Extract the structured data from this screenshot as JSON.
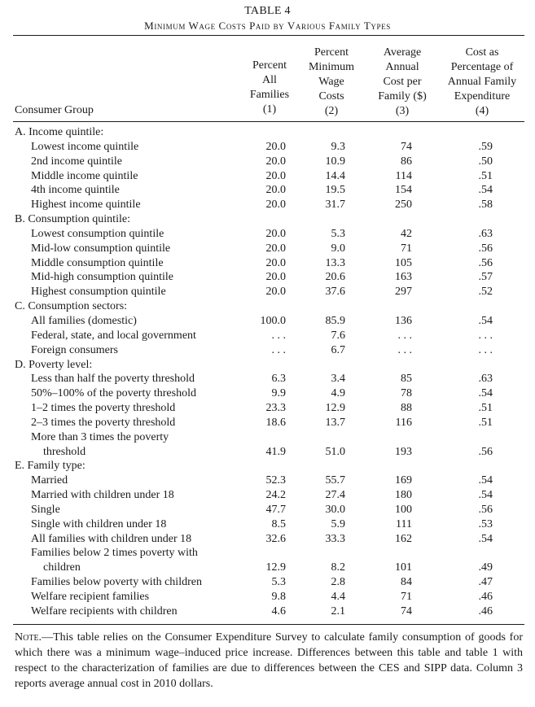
{
  "table_number": "TABLE 4",
  "table_title": "Minimum Wage Costs Paid by Various Family Types",
  "columns": {
    "group": "Consumer Group",
    "col1": [
      "Percent",
      "All",
      "Families",
      "(1)"
    ],
    "col2": [
      "Percent",
      "Minimum",
      "Wage",
      "Costs",
      "(2)"
    ],
    "col3": [
      "Average",
      "Annual",
      "Cost per",
      "Family ($)",
      "(3)"
    ],
    "col4": [
      "Cost as",
      "Percentage of",
      "Annual Family",
      "Expenditure",
      "(4)"
    ]
  },
  "rows": [
    {
      "kind": "section",
      "label": "A. Income quintile:"
    },
    {
      "kind": "item",
      "label": "Lowest income quintile",
      "c1": "20.0",
      "c2": "9.3",
      "c3": "74",
      "c4": ".59"
    },
    {
      "kind": "item",
      "label": "2nd income quintile",
      "c1": "20.0",
      "c2": "10.9",
      "c3": "86",
      "c4": ".50"
    },
    {
      "kind": "item",
      "label": "Middle income quintile",
      "c1": "20.0",
      "c2": "14.4",
      "c3": "114",
      "c4": ".51"
    },
    {
      "kind": "item",
      "label": "4th income quintile",
      "c1": "20.0",
      "c2": "19.5",
      "c3": "154",
      "c4": ".54"
    },
    {
      "kind": "item",
      "label": "Highest income quintile",
      "c1": "20.0",
      "c2": "31.7",
      "c3": "250",
      "c4": ".58"
    },
    {
      "kind": "section",
      "label": "B. Consumption quintile:"
    },
    {
      "kind": "item",
      "label": "Lowest consumption quintile",
      "c1": "20.0",
      "c2": "5.3",
      "c3": "42",
      "c4": ".63"
    },
    {
      "kind": "item",
      "label": "Mid-low consumption quintile",
      "c1": "20.0",
      "c2": "9.0",
      "c3": "71",
      "c4": ".56"
    },
    {
      "kind": "item",
      "label": "Middle consumption quintile",
      "c1": "20.0",
      "c2": "13.3",
      "c3": "105",
      "c4": ".56"
    },
    {
      "kind": "item",
      "label": "Mid-high consumption quintile",
      "c1": "20.0",
      "c2": "20.6",
      "c3": "163",
      "c4": ".57"
    },
    {
      "kind": "item",
      "label": "Highest consumption quintile",
      "c1": "20.0",
      "c2": "37.6",
      "c3": "297",
      "c4": ".52"
    },
    {
      "kind": "section",
      "label": "C. Consumption sectors:"
    },
    {
      "kind": "item",
      "label": "All families (domestic)",
      "c1": "100.0",
      "c2": "85.9",
      "c3": "136",
      "c4": ".54"
    },
    {
      "kind": "item",
      "label": "Federal, state, and local government",
      "c1": ". . .",
      "c2": "7.6",
      "c3": ". . .",
      "c4": ". . ."
    },
    {
      "kind": "item",
      "label": "Foreign consumers",
      "c1": ". . .",
      "c2": "6.7",
      "c3": ". . .",
      "c4": ". . ."
    },
    {
      "kind": "section",
      "label": "D. Poverty level:"
    },
    {
      "kind": "item",
      "label": "Less than half the poverty threshold",
      "c1": "6.3",
      "c2": "3.4",
      "c3": "85",
      "c4": ".63"
    },
    {
      "kind": "item",
      "label": "50%–100% of the poverty threshold",
      "c1": "9.9",
      "c2": "4.9",
      "c3": "78",
      "c4": ".54"
    },
    {
      "kind": "item",
      "label": "1–2 times the poverty threshold",
      "c1": "23.3",
      "c2": "12.9",
      "c3": "88",
      "c4": ".51"
    },
    {
      "kind": "item",
      "label": "2–3 times the poverty threshold",
      "c1": "18.6",
      "c2": "13.7",
      "c3": "116",
      "c4": ".51"
    },
    {
      "kind": "item",
      "label": "More than 3 times the poverty"
    },
    {
      "kind": "cont",
      "label": "threshold",
      "c1": "41.9",
      "c2": "51.0",
      "c3": "193",
      "c4": ".56"
    },
    {
      "kind": "section",
      "label": "E. Family type:"
    },
    {
      "kind": "item",
      "label": "Married",
      "c1": "52.3",
      "c2": "55.7",
      "c3": "169",
      "c4": ".54"
    },
    {
      "kind": "item",
      "label": "Married with children under 18",
      "c1": "24.2",
      "c2": "27.4",
      "c3": "180",
      "c4": ".54"
    },
    {
      "kind": "item",
      "label": "Single",
      "c1": "47.7",
      "c2": "30.0",
      "c3": "100",
      "c4": ".56"
    },
    {
      "kind": "item",
      "label": "Single with children under 18",
      "c1": "8.5",
      "c2": "5.9",
      "c3": "111",
      "c4": ".53"
    },
    {
      "kind": "item",
      "label": "All families with children under 18",
      "c1": "32.6",
      "c2": "33.3",
      "c3": "162",
      "c4": ".54"
    },
    {
      "kind": "item",
      "label": "Families below 2 times poverty with"
    },
    {
      "kind": "cont",
      "label": "children",
      "c1": "12.9",
      "c2": "8.2",
      "c3": "101",
      "c4": ".49"
    },
    {
      "kind": "item",
      "label": "Families below poverty with children",
      "c1": "5.3",
      "c2": "2.8",
      "c3": "84",
      "c4": ".47"
    },
    {
      "kind": "item",
      "label": "Welfare recipient families",
      "c1": "9.8",
      "c2": "4.4",
      "c3": "71",
      "c4": ".46"
    },
    {
      "kind": "item",
      "label": "Welfare recipients with children",
      "c1": "4.6",
      "c2": "2.1",
      "c3": "74",
      "c4": ".46"
    }
  ],
  "note": {
    "label": "Note.",
    "text": "—This table relies on the Consumer Expenditure Survey to calculate family consumption of goods for which there was a minimum wage–induced price increase. Differences between this table and table 1 with respect to the characterization of families are due to differences between the CES and SIPP data. Column 3 reports average annual cost in 2010 dollars."
  }
}
